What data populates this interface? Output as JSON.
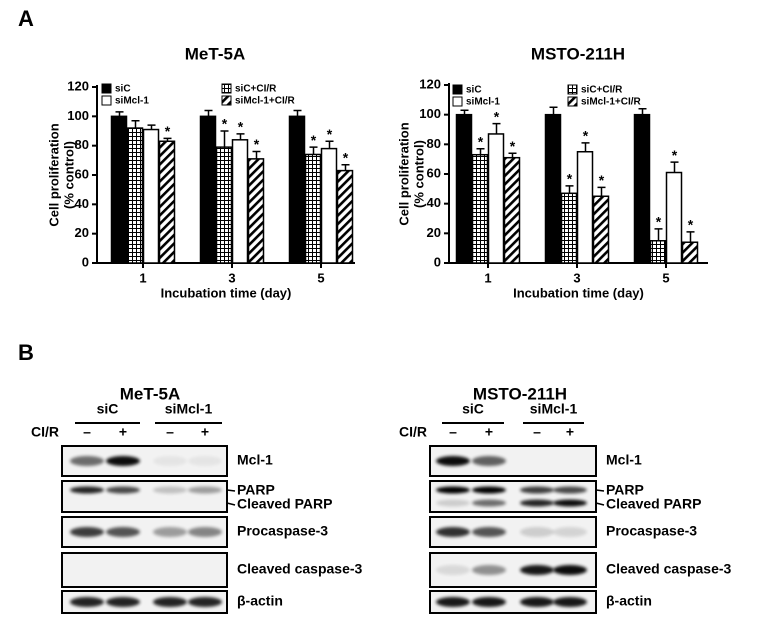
{
  "panel_labels": [
    "A",
    "B"
  ],
  "chart_data": [
    {
      "type": "bar",
      "title": "MeT-5A",
      "y_label": [
        "Cell proliferation",
        "(% control)"
      ],
      "x_label": "Incubation time (day)",
      "categories": [
        "1",
        "3",
        "5"
      ],
      "ylim": [
        0,
        120
      ],
      "yticks": [
        0,
        20,
        40,
        60,
        80,
        100,
        120
      ],
      "series": [
        {
          "name": "siC",
          "color": "#000000",
          "fill": "solid",
          "values": [
            100,
            100,
            100
          ],
          "errors": [
            3,
            4,
            4
          ],
          "marks": [
            null,
            null,
            null
          ]
        },
        {
          "name": "siC+CI/R",
          "color": "#000000",
          "fill": "grid",
          "values": [
            92,
            79,
            74
          ],
          "errors": [
            5,
            11,
            5
          ],
          "marks": [
            null,
            "*",
            "*"
          ]
        },
        {
          "name": "siMcl-1",
          "color": "#000000",
          "fill": "white",
          "values": [
            91,
            84,
            78
          ],
          "errors": [
            3,
            4,
            5
          ],
          "marks": [
            null,
            "*",
            "*"
          ]
        },
        {
          "name": "siMcl-1+CI/R",
          "color": "#000000",
          "fill": "hatch",
          "values": [
            83,
            71,
            63
          ],
          "errors": [
            2,
            5,
            4
          ],
          "marks": [
            "*",
            "*",
            "*"
          ]
        }
      ]
    },
    {
      "type": "bar",
      "title": "MSTO-211H",
      "y_label": [
        "Cell proliferation",
        "(% control)"
      ],
      "x_label": "Incubation time (day)",
      "categories": [
        "1",
        "3",
        "5"
      ],
      "ylim": [
        0,
        120
      ],
      "yticks": [
        0,
        20,
        40,
        60,
        80,
        100,
        120
      ],
      "series": [
        {
          "name": "siC",
          "color": "#000000",
          "fill": "solid",
          "values": [
            100,
            100,
            100
          ],
          "errors": [
            3,
            5,
            4
          ],
          "marks": [
            null,
            null,
            null
          ]
        },
        {
          "name": "siC+CI/R",
          "color": "#000000",
          "fill": "grid",
          "values": [
            73,
            47,
            15
          ],
          "errors": [
            4,
            5,
            8
          ],
          "marks": [
            "*",
            "*",
            "*"
          ]
        },
        {
          "name": "siMcl-1",
          "color": "#000000",
          "fill": "white",
          "values": [
            87,
            75,
            61
          ],
          "errors": [
            7,
            6,
            7
          ],
          "marks": [
            "*",
            "*",
            "*"
          ]
        },
        {
          "name": "siMcl-1+CI/R",
          "color": "#000000",
          "fill": "hatch",
          "values": [
            71,
            45,
            14
          ],
          "errors": [
            3,
            6,
            7
          ],
          "marks": [
            "*",
            "*",
            "*"
          ]
        }
      ]
    }
  ],
  "blots": [
    {
      "title": "MeT-5A",
      "groups": [
        "siC",
        "siMcl-1"
      ],
      "treatment": "CI/R",
      "lane_signs": [
        "–",
        "+",
        "–",
        "+"
      ],
      "rows": [
        [
          "Mcl-1"
        ],
        [
          "PARP",
          "Cleaved PARP"
        ],
        [
          "Procaspase-3"
        ],
        [
          "Cleaved caspase-3"
        ],
        [
          "β-actin"
        ]
      ]
    },
    {
      "title": "MSTO-211H",
      "groups": [
        "siC",
        "siMcl-1"
      ],
      "treatment": "CI/R",
      "lane_signs": [
        "–",
        "+",
        "–",
        "+"
      ],
      "rows": [
        [
          "Mcl-1"
        ],
        [
          "PARP",
          "Cleaved PARP"
        ],
        [
          "Procaspase-3"
        ],
        [
          "Cleaved caspase-3"
        ],
        [
          "β-actin"
        ]
      ]
    }
  ]
}
